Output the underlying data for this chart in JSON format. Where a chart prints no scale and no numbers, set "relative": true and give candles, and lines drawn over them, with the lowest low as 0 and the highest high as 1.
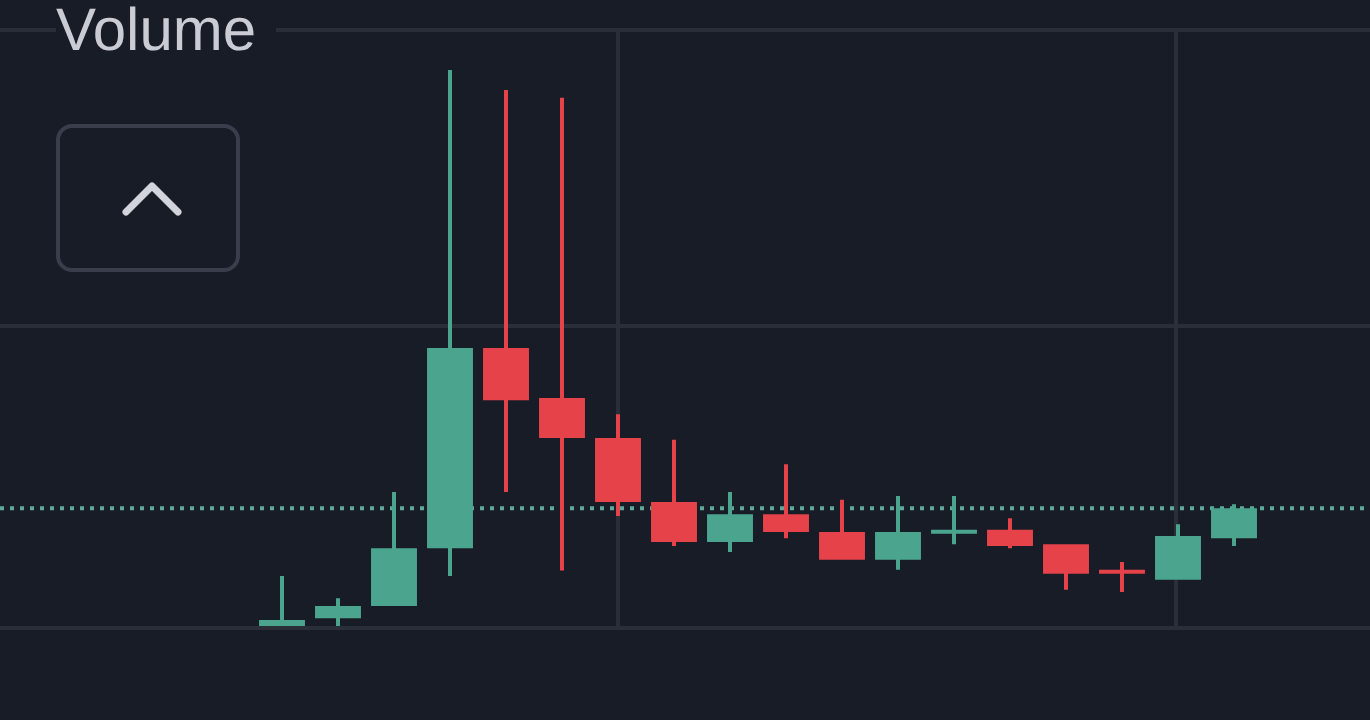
{
  "chart_data": {
    "type": "candlestick",
    "title": "Volume",
    "relative": true,
    "categories": [
      null,
      null,
      null,
      null,
      null,
      null,
      null,
      null,
      null,
      null,
      null,
      null,
      null,
      null,
      null,
      null,
      null,
      null
    ],
    "ohlc": [
      [
        0,
        0.09,
        0,
        0.011
      ],
      [
        0.014,
        0.05,
        0,
        0.036
      ],
      [
        0.036,
        0.241,
        0.036,
        0.14
      ],
      [
        0.14,
        1,
        0.09,
        0.5
      ],
      [
        0.5,
        0.964,
        0.241,
        0.406
      ],
      [
        0.41,
        0.95,
        0.1,
        0.338
      ],
      [
        0.338,
        0.381,
        0.198,
        0.223
      ],
      [
        0.223,
        0.335,
        0.144,
        0.151
      ],
      [
        0.151,
        0.241,
        0.133,
        0.201
      ],
      [
        0.201,
        0.291,
        0.158,
        0.169
      ],
      [
        0.169,
        0.227,
        0.119,
        0.119
      ],
      [
        0.119,
        0.234,
        0.101,
        0.169
      ],
      [
        0.169,
        0.234,
        0.147,
        0.173
      ],
      [
        0.173,
        0.194,
        0.14,
        0.144
      ],
      [
        0.147,
        0.147,
        0.065,
        0.094
      ],
      [
        0.101,
        0.115,
        0.061,
        0.094
      ],
      [
        0.083,
        0.183,
        0.083,
        0.162
      ],
      [
        0.158,
        0.219,
        0.144,
        0.212
      ]
    ],
    "colors": [
      "#4ba58e",
      "#4ba58e",
      "#4ba58e",
      "#4ba58e",
      "#e5424a",
      "#e5424a",
      "#e5424a",
      "#e5424a",
      "#4ba58e",
      "#e5424a",
      "#e5424a",
      "#4ba58e",
      "#4ba58e",
      "#e5424a",
      "#e5424a",
      "#e5424a",
      "#4ba58e",
      "#4ba58e"
    ],
    "ref_lines": [
      {
        "axis": "y",
        "value": 0.212,
        "color": "#5fa99a",
        "line_style": "dotted"
      }
    ]
  }
}
